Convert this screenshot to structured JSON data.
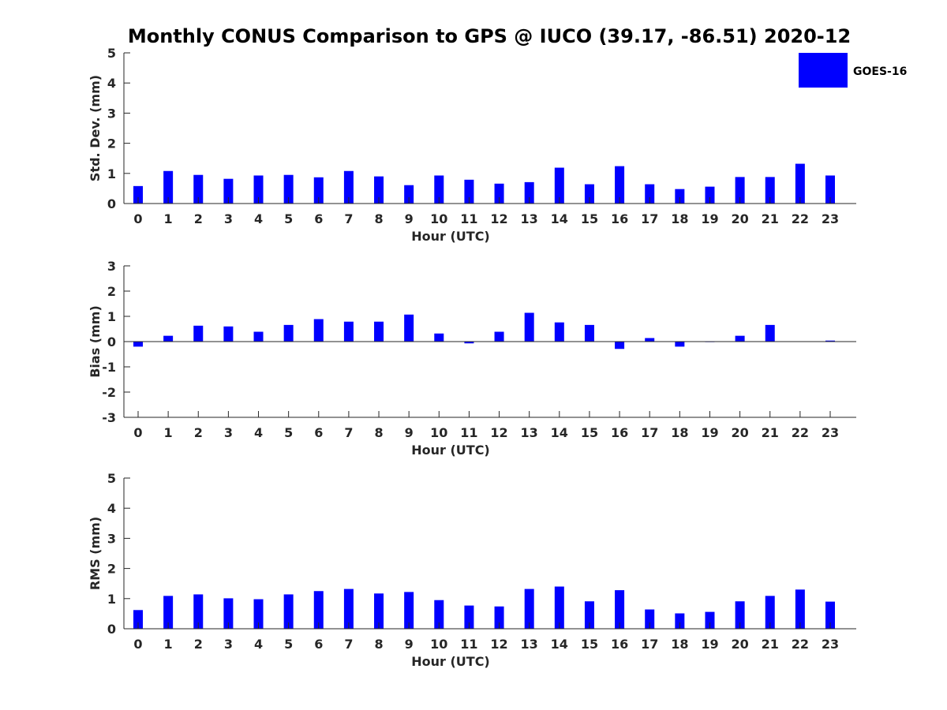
{
  "chart_data": {
    "type": "bar",
    "title": "Monthly CONUS Comparison to GPS @ IUCO (39.17, -86.51) 2020-12",
    "legend": {
      "position": "top-right",
      "entries": [
        {
          "name": "GOES-16",
          "color": "#0000ff"
        }
      ]
    },
    "categories": [
      "0",
      "1",
      "2",
      "3",
      "4",
      "5",
      "6",
      "7",
      "8",
      "9",
      "10",
      "11",
      "12",
      "13",
      "14",
      "15",
      "16",
      "17",
      "18",
      "19",
      "20",
      "21",
      "22",
      "23"
    ],
    "panels": [
      {
        "id": "std",
        "ylabel": "Std. Dev. (mm)",
        "xlabel": "Hour (UTC)",
        "ylim": [
          0,
          5
        ],
        "yticks": [
          0,
          1,
          2,
          3,
          4,
          5
        ],
        "series": [
          {
            "name": "GOES-16",
            "values": [
              0.58,
              1.08,
              0.95,
              0.82,
              0.93,
              0.95,
              0.87,
              1.08,
              0.9,
              0.61,
              0.93,
              0.79,
              0.66,
              0.71,
              1.19,
              0.64,
              1.24,
              0.64,
              0.48,
              0.56,
              0.88,
              0.88,
              1.32,
              0.93
            ]
          }
        ]
      },
      {
        "id": "bias",
        "ylabel": "Bias (mm)",
        "xlabel": "Hour (UTC)",
        "ylim": [
          -3,
          3
        ],
        "yticks": [
          -3,
          -2,
          -1,
          0,
          1,
          2,
          3
        ],
        "series": [
          {
            "name": "GOES-16",
            "values": [
              -0.2,
              0.23,
              0.63,
              0.6,
              0.39,
              0.66,
              0.89,
              0.79,
              0.79,
              1.07,
              0.32,
              -0.07,
              0.39,
              1.14,
              0.76,
              0.66,
              -0.29,
              0.14,
              -0.2,
              -0.02,
              0.23,
              0.66,
              0.0,
              0.04
            ]
          }
        ]
      },
      {
        "id": "rms",
        "ylabel": "RMS (mm)",
        "xlabel": "Hour (UTC)",
        "ylim": [
          0,
          5
        ],
        "yticks": [
          0,
          1,
          2,
          3,
          4,
          5
        ],
        "series": [
          {
            "name": "GOES-16",
            "values": [
              0.62,
              1.09,
              1.14,
              1.01,
              0.98,
              1.14,
              1.25,
              1.32,
              1.17,
              1.22,
              0.95,
              0.77,
              0.74,
              1.32,
              1.4,
              0.91,
              1.28,
              0.64,
              0.51,
              0.56,
              0.91,
              1.09,
              1.3,
              0.9
            ]
          }
        ]
      }
    ]
  }
}
